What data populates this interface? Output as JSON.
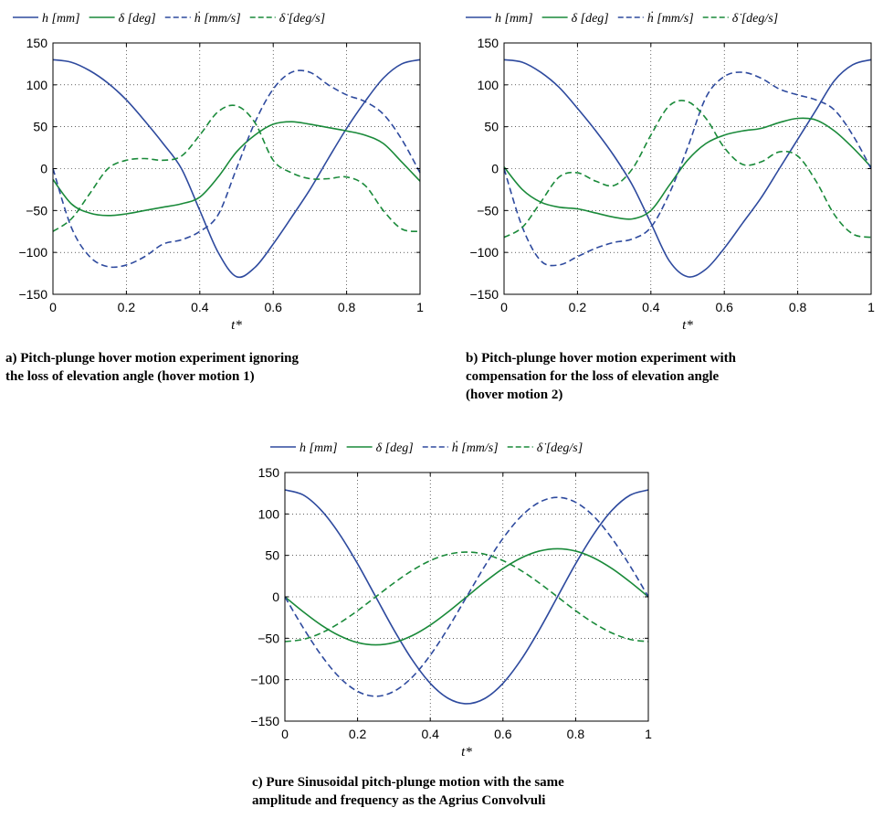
{
  "series_styles": [
    {
      "color": "#2e4a9e",
      "dash": "solid"
    },
    {
      "color": "#1a8a3a",
      "dash": "solid"
    },
    {
      "color": "#2e4a9e",
      "dash": "dashed"
    },
    {
      "color": "#1a8a3a",
      "dash": "dashed"
    }
  ],
  "chart_data": [
    {
      "type": "line",
      "caption": [
        "a) Pitch-plunge hover motion experiment ignoring",
        "the loss of elevation angle (hover motion 1)"
      ],
      "xlabel": "t*",
      "xlim": [
        0,
        1
      ],
      "ylim": [
        -150,
        150
      ],
      "xticks": [
        "0",
        "0.2",
        "0.4",
        "0.6",
        "0.8",
        "1"
      ],
      "yticks": [
        "150",
        "100",
        "50",
        "0",
        "−50",
        "−100",
        "−150"
      ],
      "grid": true,
      "legend": [
        "h [mm]",
        "δ [deg]",
        "ḣ [mm/s]",
        "δ̇ [deg/s]"
      ],
      "series": [
        {
          "name": "h [mm]",
          "x": [
            0,
            0.05,
            0.1,
            0.15,
            0.2,
            0.25,
            0.3,
            0.35,
            0.4,
            0.45,
            0.5,
            0.55,
            0.6,
            0.65,
            0.7,
            0.75,
            0.8,
            0.85,
            0.9,
            0.95,
            1
          ],
          "y": [
            130,
            127,
            117,
            102,
            82,
            57,
            30,
            0,
            -50,
            -100,
            -129,
            -118,
            -90,
            -58,
            -25,
            12,
            48,
            80,
            108,
            125,
            130
          ]
        },
        {
          "name": "δ [deg]",
          "x": [
            0,
            0.05,
            0.1,
            0.15,
            0.2,
            0.25,
            0.3,
            0.35,
            0.4,
            0.45,
            0.5,
            0.55,
            0.6,
            0.65,
            0.7,
            0.75,
            0.8,
            0.85,
            0.9,
            0.95,
            1
          ],
          "y": [
            -13,
            -42,
            -53,
            -56,
            -54,
            -50,
            -46,
            -42,
            -34,
            -10,
            20,
            40,
            53,
            56,
            53,
            49,
            45,
            40,
            30,
            8,
            -15
          ]
        },
        {
          "name": "ḣ [mm/s]",
          "x": [
            0,
            0.05,
            0.1,
            0.15,
            0.2,
            0.25,
            0.3,
            0.35,
            0.4,
            0.45,
            0.5,
            0.55,
            0.6,
            0.65,
            0.7,
            0.75,
            0.8,
            0.85,
            0.9,
            0.95,
            1
          ],
          "y": [
            0,
            -70,
            -105,
            -117,
            -115,
            -105,
            -90,
            -85,
            -75,
            -55,
            0,
            55,
            95,
            115,
            115,
            100,
            88,
            80,
            65,
            35,
            -5
          ]
        },
        {
          "name": "δ̇ [deg/s]",
          "x": [
            0,
            0.05,
            0.1,
            0.15,
            0.2,
            0.25,
            0.3,
            0.35,
            0.4,
            0.45,
            0.5,
            0.55,
            0.6,
            0.65,
            0.7,
            0.75,
            0.8,
            0.85,
            0.9,
            0.95,
            1
          ],
          "y": [
            -75,
            -60,
            -30,
            0,
            10,
            12,
            10,
            15,
            40,
            68,
            75,
            55,
            10,
            -5,
            -12,
            -12,
            -10,
            -20,
            -50,
            -72,
            -75
          ]
        }
      ]
    },
    {
      "type": "line",
      "caption": [
        "b) Pitch-plunge hover motion experiment with",
        "compensation for the loss of elevation angle",
        "(hover motion 2)"
      ],
      "xlabel": "t*",
      "xlim": [
        0,
        1
      ],
      "ylim": [
        -150,
        150
      ],
      "xticks": [
        "0",
        "0.2",
        "0.4",
        "0.6",
        "0.8",
        "1"
      ],
      "yticks": [
        "150",
        "100",
        "50",
        "0",
        "−50",
        "−100",
        "−150"
      ],
      "grid": true,
      "legend": [
        "h [mm]",
        "δ [deg]",
        "ḣ [mm/s]",
        "δ̇ [deg/s]"
      ],
      "series": [
        {
          "name": "h [mm]",
          "x": [
            0,
            0.05,
            0.1,
            0.15,
            0.2,
            0.25,
            0.3,
            0.35,
            0.4,
            0.45,
            0.5,
            0.55,
            0.6,
            0.65,
            0.7,
            0.75,
            0.8,
            0.85,
            0.9,
            0.95,
            1
          ],
          "y": [
            130,
            127,
            115,
            97,
            72,
            45,
            15,
            -20,
            -65,
            -110,
            -129,
            -120,
            -95,
            -65,
            -35,
            0,
            35,
            70,
            105,
            124,
            130
          ]
        },
        {
          "name": "δ [deg]",
          "x": [
            0,
            0.05,
            0.1,
            0.15,
            0.2,
            0.25,
            0.3,
            0.35,
            0.4,
            0.45,
            0.5,
            0.55,
            0.6,
            0.65,
            0.7,
            0.75,
            0.8,
            0.85,
            0.9,
            0.95,
            1
          ],
          "y": [
            2,
            -25,
            -40,
            -46,
            -48,
            -53,
            -58,
            -60,
            -50,
            -20,
            10,
            30,
            40,
            45,
            48,
            55,
            60,
            58,
            45,
            25,
            2
          ]
        },
        {
          "name": "ḣ [mm/s]",
          "x": [
            0,
            0.05,
            0.1,
            0.15,
            0.2,
            0.25,
            0.3,
            0.35,
            0.4,
            0.45,
            0.5,
            0.55,
            0.6,
            0.65,
            0.7,
            0.75,
            0.8,
            0.85,
            0.9,
            0.95,
            1
          ],
          "y": [
            0,
            -70,
            -110,
            -115,
            -105,
            -95,
            -88,
            -84,
            -70,
            -30,
            25,
            85,
            110,
            115,
            108,
            95,
            88,
            82,
            70,
            40,
            0
          ]
        },
        {
          "name": "δ̇ [deg/s]",
          "x": [
            0,
            0.05,
            0.1,
            0.15,
            0.2,
            0.25,
            0.3,
            0.35,
            0.4,
            0.45,
            0.5,
            0.55,
            0.6,
            0.65,
            0.7,
            0.75,
            0.8,
            0.85,
            0.9,
            0.95,
            1
          ],
          "y": [
            -82,
            -70,
            -40,
            -10,
            -5,
            -15,
            -20,
            0,
            40,
            75,
            80,
            60,
            25,
            5,
            8,
            20,
            15,
            -15,
            -55,
            -78,
            -82
          ]
        }
      ]
    },
    {
      "type": "line",
      "caption": [
        "c) Pure Sinusoidal pitch-plunge motion with the same",
        "amplitude and frequency as the Agrius Convolvuli"
      ],
      "xlabel": "t*",
      "xlim": [
        0,
        1
      ],
      "ylim": [
        -150,
        150
      ],
      "xticks": [
        "0",
        "0.2",
        "0.4",
        "0.6",
        "0.8",
        "1"
      ],
      "yticks": [
        "150",
        "100",
        "50",
        "0",
        "−50",
        "−100",
        "−150"
      ],
      "grid": true,
      "legend": [
        "h [mm]",
        "δ [deg]",
        "ḣ [mm/s]",
        "δ̇ [deg/s]"
      ],
      "series": [
        {
          "name": "h [mm]",
          "x": [
            0,
            0.05,
            0.1,
            0.15,
            0.2,
            0.25,
            0.3,
            0.35,
            0.4,
            0.45,
            0.5,
            0.55,
            0.6,
            0.65,
            0.7,
            0.75,
            0.8,
            0.85,
            0.9,
            0.95,
            1
          ],
          "y": [
            129,
            123,
            104.4,
            75.8,
            39.9,
            0,
            -39.9,
            -75.8,
            -104.4,
            -122.7,
            -129,
            -122.7,
            -104.4,
            -75.8,
            -39.9,
            0,
            39.9,
            75.8,
            104.4,
            122.7,
            129
          ]
        },
        {
          "name": "δ [deg]",
          "x": [
            0,
            0.05,
            0.1,
            0.15,
            0.2,
            0.25,
            0.3,
            0.35,
            0.4,
            0.45,
            0.5,
            0.55,
            0.6,
            0.65,
            0.7,
            0.75,
            0.8,
            0.85,
            0.9,
            0.95,
            1
          ],
          "y": [
            0,
            -17.9,
            -34.1,
            -46.9,
            -55.2,
            -58,
            -55.2,
            -46.9,
            -34.1,
            -17.9,
            0,
            17.9,
            34.1,
            46.9,
            55.2,
            58,
            55.2,
            46.9,
            34.1,
            17.9,
            0
          ]
        },
        {
          "name": "ḣ [mm/s]",
          "x": [
            0,
            0.05,
            0.1,
            0.15,
            0.2,
            0.25,
            0.3,
            0.35,
            0.4,
            0.45,
            0.5,
            0.55,
            0.6,
            0.65,
            0.7,
            0.75,
            0.8,
            0.85,
            0.9,
            0.95,
            1
          ],
          "y": [
            0,
            -37.1,
            -70.5,
            -97.1,
            -114.1,
            -120,
            -114.1,
            -97.1,
            -70.5,
            -37.1,
            0,
            37.1,
            70.5,
            97.1,
            114.1,
            120,
            114.1,
            97.1,
            70.5,
            37.1,
            0
          ]
        },
        {
          "name": "δ̇ [deg/s]",
          "x": [
            0,
            0.05,
            0.1,
            0.15,
            0.2,
            0.25,
            0.3,
            0.35,
            0.4,
            0.45,
            0.5,
            0.55,
            0.6,
            0.65,
            0.7,
            0.75,
            0.8,
            0.85,
            0.9,
            0.95,
            1
          ],
          "y": [
            -54,
            -51.4,
            -43.7,
            -31.7,
            -16.7,
            0,
            16.7,
            31.7,
            43.7,
            51.4,
            54,
            51.4,
            43.7,
            31.7,
            16.7,
            0,
            -16.7,
            -31.7,
            -43.7,
            -51.4,
            -54
          ]
        }
      ]
    }
  ]
}
